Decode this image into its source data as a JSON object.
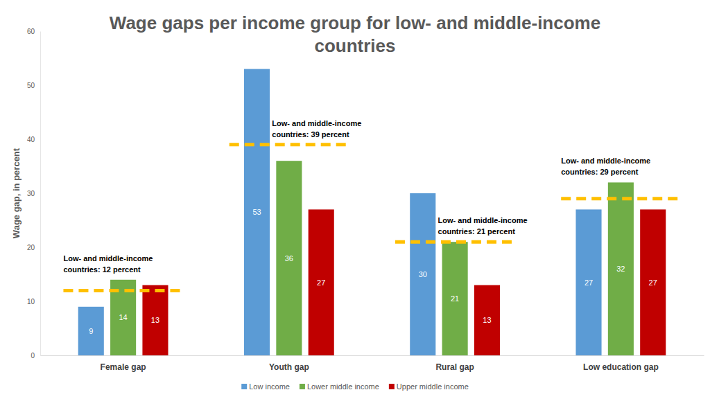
{
  "chart_data": {
    "type": "bar",
    "title": "Wage gaps per income group for low- and middle-income countries",
    "y_label": "Wage gap, in percent",
    "categories": [
      "Female gap",
      "Youth gap",
      "Rural gap",
      "Low education gap"
    ],
    "series": [
      {
        "name": "Low income",
        "color": "#5b9bd5",
        "values": [
          9,
          53,
          30,
          27
        ]
      },
      {
        "name": "Lower middle income",
        "color": "#70ad47",
        "values": [
          14,
          36,
          21,
          32
        ]
      },
      {
        "name": "Upper middle income",
        "color": "#c00000",
        "values": [
          13,
          27,
          13,
          27
        ]
      }
    ],
    "reference_lines": [
      {
        "category": "Female gap",
        "value": 12,
        "color": "#ffc000",
        "label": [
          "Low- and middle-income",
          "countries: 12 percent"
        ]
      },
      {
        "category": "Youth gap",
        "value": 39,
        "color": "#ffc000",
        "label": [
          "Low- and middle-income",
          "countries: 39 percent"
        ]
      },
      {
        "category": "Rural gap",
        "value": 21,
        "color": "#ffc000",
        "label": [
          "Low- and middle-income",
          "countries: 21 percent"
        ]
      },
      {
        "category": "Low education gap",
        "value": 29,
        "color": "#ffc000",
        "label": [
          "Low- and middle-income",
          "countries: 29 percent"
        ]
      }
    ],
    "ylim": [
      0,
      60
    ],
    "yticks": [
      0,
      10,
      20,
      30,
      40,
      50,
      60
    ],
    "grid": false,
    "legend": "bottom",
    "data_labels": true
  }
}
